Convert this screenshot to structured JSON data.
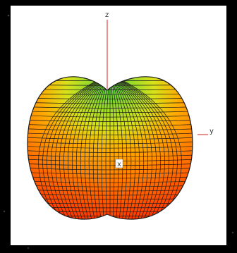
{
  "axes": {
    "z_label": "z",
    "y_label": "y",
    "x_label": "x"
  },
  "colors": {
    "axis": "#cc2222",
    "mesh": "#1a1a1a",
    "surface_top": "#55d23c",
    "surface_mid": "#ffaa00",
    "surface_bottom": "#ff2a00",
    "background": "#ffffff"
  }
}
